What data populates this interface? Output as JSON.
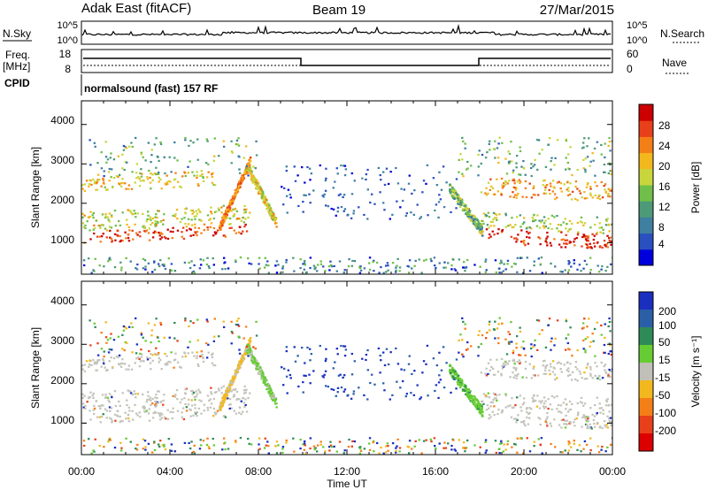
{
  "header": {
    "station": "Adak East (fitACF)",
    "beam": "Beam 19",
    "date": "27/Mar/2015"
  },
  "strips": {
    "nsky_label": "N.Sky",
    "nsearch_label": "N.Search",
    "noise_ticks_left": [
      "10^5",
      "10^0"
    ],
    "noise_ticks_right": [
      "10^5",
      "10^0"
    ],
    "freq_label": "Freq.",
    "freq_unit": "[MHz]",
    "freq_ticks": [
      "18",
      "8"
    ],
    "nave_label": "Nave",
    "nave_ticks": [
      "60",
      "0"
    ],
    "cpid_label": "CPID",
    "cpid_text": "normalsound (fast) 157 RF"
  },
  "chart_data": [
    {
      "type": "heatmap",
      "panel": "power",
      "ylabel": "Slant Range [km]",
      "yticks": [
        "4000",
        "3000",
        "2000",
        "1000"
      ],
      "ylim": [
        200,
        4600
      ],
      "colorbar_label": "Power [dB]",
      "colorbar_ticks": [
        "28",
        "24",
        "20",
        "16",
        "12",
        "8",
        "4"
      ],
      "colorscale": [
        "#0000dd",
        "#2a4fbf",
        "#3f7fa0",
        "#4c9a78",
        "#6fbf4a",
        "#c8d63c",
        "#f2b81e",
        "#f57f17",
        "#e8401a",
        "#cc0000"
      ],
      "colorscale_range": [
        0,
        32
      ],
      "bands": [
        {
          "start_h": 0.0,
          "end_h": 7.6,
          "range_km": [
            1000,
            1300
          ],
          "power_db": 28
        },
        {
          "start_h": 0.0,
          "end_h": 7.6,
          "range_km": [
            1300,
            1800
          ],
          "power_db": 18
        },
        {
          "start_h": 0.0,
          "end_h": 6.0,
          "range_km": [
            2300,
            2700
          ],
          "power_db": 20
        },
        {
          "start_h": 18.0,
          "end_h": 24.0,
          "range_km": [
            1000,
            1400
          ],
          "power_db": 28
        },
        {
          "start_h": 18.0,
          "end_h": 24.0,
          "range_km": [
            1400,
            1800
          ],
          "power_db": 16
        },
        {
          "start_h": 18.0,
          "end_h": 24.0,
          "range_km": [
            2200,
            2700
          ],
          "power_db": 22
        }
      ]
    },
    {
      "type": "heatmap",
      "panel": "velocity",
      "ylabel": "Slant Range [km]",
      "yticks": [
        "4000",
        "3000",
        "2000",
        "1000"
      ],
      "ylim": [
        200,
        4600
      ],
      "xlabel": "Time UT",
      "xticks": [
        "00:00",
        "04:00",
        "08:00",
        "12:00",
        "16:00",
        "20:00",
        "00:00"
      ],
      "xlim": [
        0,
        24
      ],
      "colorbar_label": "Velocity [m s⁻¹]",
      "colorbar_ticks": [
        "200",
        "100",
        "50",
        "15",
        "-15",
        "-50",
        "-100",
        "-200"
      ],
      "colorscale": [
        "#1a2fc0",
        "#2a5fa8",
        "#2e8b57",
        "#66cc33",
        "#c0c0b8",
        "#f2b81e",
        "#f57f17",
        "#e8401a",
        "#dd0000"
      ],
      "bands": [
        {
          "start_h": 0.0,
          "end_h": 7.6,
          "range_km": [
            1000,
            1800
          ],
          "velocity": "ground scatter"
        },
        {
          "start_h": 0.0,
          "end_h": 6.0,
          "range_km": [
            2300,
            2700
          ],
          "velocity": "ground scatter"
        },
        {
          "start_h": 18.0,
          "end_h": 24.0,
          "range_km": [
            1000,
            1800
          ],
          "velocity": "ground scatter"
        },
        {
          "start_h": 18.0,
          "end_h": 24.0,
          "range_km": [
            2200,
            2700
          ],
          "velocity": "ground scatter"
        }
      ]
    }
  ]
}
